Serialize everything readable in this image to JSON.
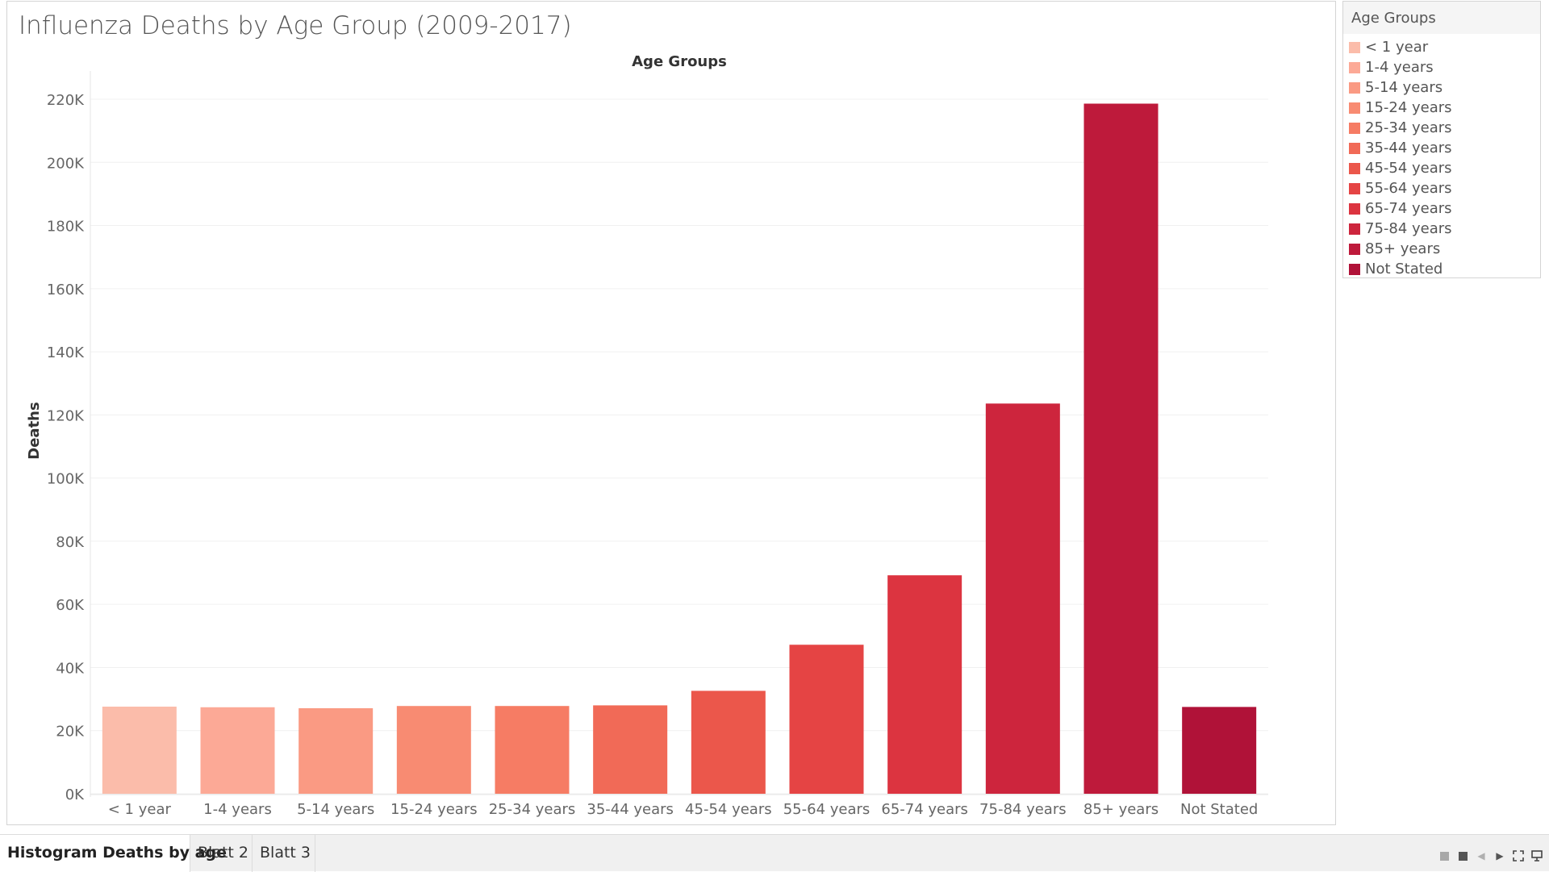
{
  "dashboard": {
    "title": "Influenza Deaths by Age Group (2009-2017)"
  },
  "legend": {
    "title": "Age Groups",
    "items": [
      {
        "label": "< 1 year",
        "color": "#fbbcaa"
      },
      {
        "label": "1-4 years",
        "color": "#fca996"
      },
      {
        "label": "5-14 years",
        "color": "#fa9a83"
      },
      {
        "label": "15-24 years",
        "color": "#f88b72"
      },
      {
        "label": "25-34 years",
        "color": "#f67c64"
      },
      {
        "label": "35-44 years",
        "color": "#f16a57"
      },
      {
        "label": "45-54 years",
        "color": "#eb574b"
      },
      {
        "label": "55-64 years",
        "color": "#e54444"
      },
      {
        "label": "65-74 years",
        "color": "#dc3440"
      },
      {
        "label": "75-84 years",
        "color": "#cd253d"
      },
      {
        "label": "85+ years",
        "color": "#be1a3b"
      },
      {
        "label": "Not Stated",
        "color": "#b01238"
      }
    ]
  },
  "chart_data": {
    "type": "bar",
    "title": "Influenza Deaths by Age Group (2009-2017)",
    "column_header": "Age Groups",
    "xlabel": "",
    "ylabel": "Deaths",
    "categories": [
      "< 1 year",
      "1-4 years",
      "5-14 years",
      "15-24 years",
      "25-34 years",
      "35-44 years",
      "45-54 years",
      "55-64 years",
      "65-74 years",
      "75-84 years",
      "85+ years",
      "Not Stated"
    ],
    "values": [
      27600,
      27400,
      27100,
      27800,
      27800,
      28000,
      32600,
      47200,
      69200,
      123600,
      218600,
      27500
    ],
    "colors": [
      "#fbbcaa",
      "#fca996",
      "#fa9a83",
      "#f88b72",
      "#f67c64",
      "#f16a57",
      "#eb574b",
      "#e54444",
      "#dc3440",
      "#cd253d",
      "#be1a3b",
      "#b01238"
    ],
    "yticks": [
      0,
      20000,
      40000,
      60000,
      80000,
      100000,
      120000,
      140000,
      160000,
      180000,
      200000,
      220000
    ],
    "ytick_labels": [
      "0K",
      "20K",
      "40K",
      "60K",
      "80K",
      "100K",
      "120K",
      "140K",
      "160K",
      "180K",
      "200K",
      "220K"
    ],
    "ylim": [
      0,
      220000
    ],
    "grid": true,
    "legend_position": "right"
  },
  "tabs": [
    {
      "label": "Histogram Deaths by age",
      "active": true
    },
    {
      "label": "Blatt 2",
      "active": false
    },
    {
      "label": "Blatt 3",
      "active": false
    }
  ],
  "nav_icons": [
    "grid-view-icon",
    "single-view-icon",
    "previous-sheet-icon",
    "next-sheet-icon",
    "fullscreen-icon",
    "presentation-icon"
  ]
}
